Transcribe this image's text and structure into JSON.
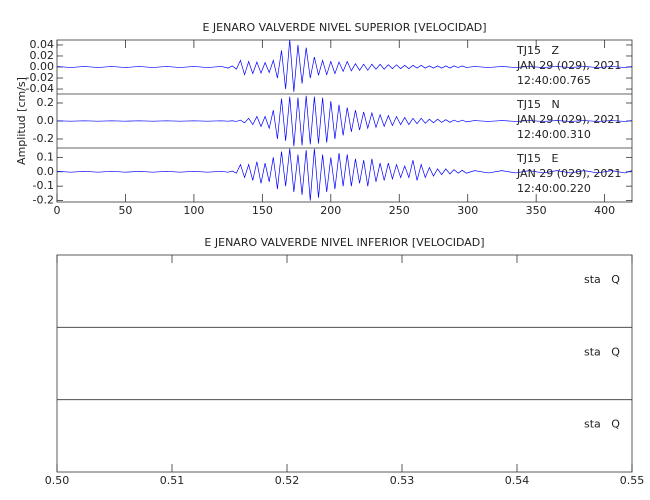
{
  "chart_data": [
    {
      "type": "line",
      "title": "E JENARO VALVERDE NIVEL SUPERIOR [VELOCIDAD]",
      "y_label": "Amplitud [cm/s]",
      "xlim": [
        0,
        420
      ],
      "xticks": [
        0,
        50,
        100,
        150,
        200,
        250,
        300,
        350,
        400
      ],
      "x": [
        0,
        10,
        20,
        30,
        40,
        50,
        60,
        70,
        80,
        90,
        100,
        110,
        120,
        125,
        128,
        131,
        134,
        137,
        140,
        143,
        146,
        149,
        152,
        155,
        158,
        161,
        164,
        167,
        170,
        173,
        176,
        179,
        182,
        185,
        188,
        191,
        194,
        197,
        200,
        203,
        206,
        209,
        212,
        215,
        218,
        221,
        224,
        227,
        230,
        233,
        236,
        239,
        242,
        245,
        248,
        251,
        254,
        257,
        260,
        263,
        266,
        269,
        272,
        275,
        278,
        281,
        284,
        287,
        290,
        293,
        296,
        299,
        305,
        315,
        325,
        335,
        345,
        355,
        365,
        375,
        385,
        395,
        405,
        415,
        420
      ],
      "panels": [
        {
          "name": "TJ15   Z",
          "date": "JAN 29 (029), 2021",
          "time": "12:40:00.765",
          "color": "#0000ff",
          "ylim": [
            -0.049,
            0.049
          ],
          "yticks": [
            -0.04,
            -0.02,
            {
              "value": 0,
              "label": "0.00"
            },
            0.02,
            0.04
          ],
          "values": [
            0.001,
            -0.001,
            0.001,
            -0.001,
            0.001,
            -0.001,
            0.001,
            -0.001,
            0.001,
            -0.001,
            0.001,
            -0.001,
            0.001,
            -0.002,
            0.002,
            -0.004,
            0.012,
            -0.014,
            0.01,
            -0.012,
            0.009,
            -0.011,
            0.008,
            -0.01,
            0.012,
            -0.02,
            0.03,
            -0.04,
            0.05,
            -0.045,
            0.04,
            -0.03,
            0.035,
            -0.02,
            0.018,
            -0.015,
            0.012,
            -0.014,
            0.01,
            -0.012,
            0.009,
            -0.008,
            0.01,
            -0.007,
            0.006,
            -0.006,
            0.005,
            -0.006,
            0.005,
            -0.004,
            0.005,
            -0.004,
            0.004,
            -0.003,
            0.004,
            -0.003,
            0.003,
            -0.003,
            0.003,
            -0.002,
            0.003,
            -0.002,
            0.002,
            -0.002,
            0.002,
            -0.002,
            0.002,
            -0.002,
            0.002,
            -0.001,
            0.002,
            -0.001,
            0.001,
            -0.001,
            0.001,
            -0.001,
            0.001,
            -0.001,
            0.001,
            -0.001,
            0.001,
            -0.001,
            0.001,
            -0.001,
            0.001
          ]
        },
        {
          "name": "TJ15   N",
          "date": "JAN 29 (029), 2021",
          "time": "12:40:00.310",
          "color": "#0000ff",
          "ylim": [
            -0.3,
            0.3
          ],
          "yticks": [
            -0.2,
            {
              "value": 0,
              "label": "0.0"
            },
            0.2
          ],
          "values": [
            0.002,
            -0.002,
            0.002,
            -0.002,
            0.002,
            -0.002,
            0.002,
            -0.002,
            0.002,
            -0.002,
            0.002,
            -0.002,
            0.002,
            -0.002,
            0.003,
            -0.005,
            0.01,
            -0.02,
            0.03,
            -0.04,
            0.05,
            -0.06,
            0.05,
            -0.08,
            0.12,
            -0.2,
            0.25,
            -0.22,
            0.27,
            -0.28,
            0.26,
            -0.27,
            0.28,
            -0.26,
            0.27,
            -0.25,
            0.26,
            -0.24,
            0.22,
            -0.2,
            0.18,
            -0.16,
            0.15,
            -0.12,
            0.12,
            -0.1,
            0.1,
            -0.08,
            0.09,
            -0.07,
            0.07,
            -0.06,
            0.06,
            -0.05,
            0.05,
            -0.04,
            0.04,
            -0.04,
            0.03,
            -0.03,
            0.03,
            -0.025,
            0.02,
            -0.02,
            0.02,
            -0.015,
            0.015,
            -0.015,
            0.01,
            -0.01,
            0.01,
            -0.01,
            0.005,
            -0.005,
            0.005,
            -0.005,
            0.005,
            -0.005,
            0.005,
            -0.005,
            0.005,
            -0.005,
            0.005,
            -0.005,
            0.005
          ]
        },
        {
          "name": "TJ15   E",
          "date": "JAN 29 (029), 2021",
          "time": "12:40:00.220",
          "color": "#0000ff",
          "ylim": [
            -0.21,
            0.165
          ],
          "yticks": [
            -0.2,
            -0.1,
            {
              "value": 0,
              "label": "0.0"
            },
            0.1
          ],
          "values": [
            0.003,
            -0.003,
            0.003,
            -0.003,
            0.003,
            -0.003,
            0.003,
            -0.003,
            0.003,
            -0.003,
            0.003,
            -0.003,
            0.003,
            -0.003,
            0.005,
            -0.01,
            0.05,
            -0.04,
            0.05,
            -0.06,
            0.07,
            -0.08,
            0.06,
            -0.07,
            0.1,
            -0.12,
            0.14,
            -0.1,
            0.16,
            -0.14,
            0.12,
            -0.16,
            0.15,
            -0.2,
            0.16,
            -0.18,
            0.12,
            -0.14,
            0.1,
            -0.12,
            0.13,
            -0.1,
            0.12,
            -0.1,
            0.09,
            -0.08,
            0.08,
            -0.1,
            0.09,
            -0.07,
            0.06,
            -0.06,
            0.06,
            -0.05,
            0.05,
            -0.04,
            0.04,
            -0.04,
            0.08,
            -0.06,
            0.05,
            -0.04,
            0.03,
            -0.03,
            0.02,
            -0.02,
            0.02,
            -0.015,
            0.015,
            -0.01,
            0.01,
            -0.01,
            0.008,
            -0.008,
            0.008,
            -0.008,
            0.008,
            -0.008,
            0.008,
            -0.008,
            0.008,
            -0.008,
            0.008,
            -0.008,
            0.008
          ]
        }
      ]
    },
    {
      "type": "line",
      "title": "E JENARO VALVERDE NIVEL INFERIOR [VELOCIDAD]",
      "xlim": [
        0.5,
        0.55
      ],
      "xticks": [
        {
          "value": 0.5,
          "label": "0.50"
        },
        0.51,
        0.52,
        0.53,
        0.54,
        0.55
      ],
      "panels": [
        {
          "name": "sta   Q"
        },
        {
          "name": "sta   Q"
        },
        {
          "name": "sta   Q"
        }
      ]
    }
  ]
}
